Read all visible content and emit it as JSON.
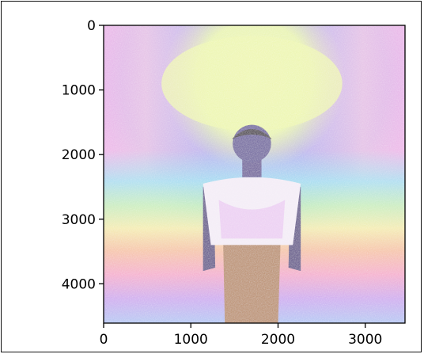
{
  "chart_data": {
    "type": "image",
    "image_description": "",
    "image_size": {
      "width": 3456,
      "height": 4608
    },
    "xlim": [
      0,
      3456
    ],
    "ylim": [
      4608,
      0
    ],
    "x_ticks": [
      0,
      1000,
      2000,
      3000
    ],
    "y_ticks": [
      0,
      1000,
      2000,
      3000,
      4000
    ],
    "x_tick_labels": [
      "0",
      "1000",
      "2000",
      "3000"
    ],
    "y_tick_labels": [
      "0",
      "1000",
      "2000",
      "3000",
      "4000"
    ],
    "title": "",
    "xlabel": "",
    "ylabel": "",
    "grid": false,
    "colormap": "pastel rainbow (false-color)"
  }
}
